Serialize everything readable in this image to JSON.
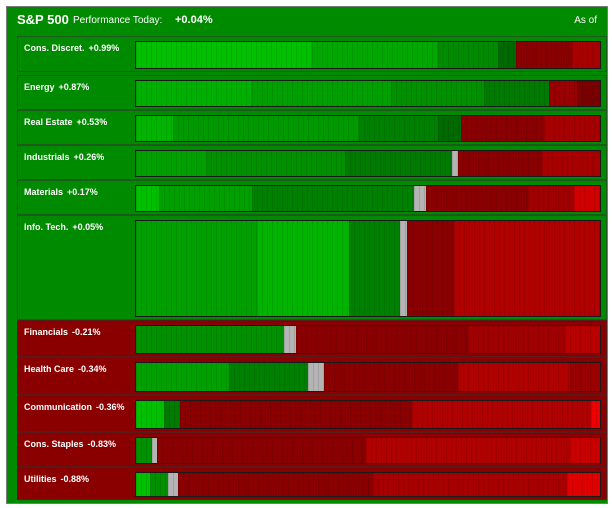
{
  "header": {
    "title": "S&P 500",
    "perf_label": "Performance Today:",
    "perf_value": "+0.04%",
    "as_of": "As of"
  },
  "colors": {
    "up": "#008a00",
    "down": "#8a0000",
    "unchanged": "#b4b4b4"
  },
  "sectors": [
    {
      "name": "Cons. Discret.",
      "change": "+0.99%",
      "direction": "up",
      "segments": [
        {
          "w": 38,
          "c": "#00c000"
        },
        {
          "w": 27,
          "c": "#00a800"
        },
        {
          "w": 13,
          "c": "#008a00"
        },
        {
          "w": 4,
          "c": "#006a00"
        },
        {
          "w": 12,
          "c": "#8a0000"
        },
        {
          "w": 6,
          "c": "#a80000"
        }
      ]
    },
    {
      "name": "Energy",
      "change": "+0.87%",
      "direction": "up",
      "segments": [
        {
          "w": 25,
          "c": "#00b000"
        },
        {
          "w": 30,
          "c": "#00a000"
        },
        {
          "w": 20,
          "c": "#009000"
        },
        {
          "w": 14,
          "c": "#007a00"
        },
        {
          "w": 6,
          "c": "#9a0000"
        },
        {
          "w": 5,
          "c": "#7a0000"
        }
      ]
    },
    {
      "name": "Real Estate",
      "change": "+0.53%",
      "direction": "up",
      "segments": [
        {
          "w": 8,
          "c": "#00b400"
        },
        {
          "w": 40,
          "c": "#009a00"
        },
        {
          "w": 17,
          "c": "#008000"
        },
        {
          "w": 5,
          "c": "#006a00"
        },
        {
          "w": 18,
          "c": "#8a0000"
        },
        {
          "w": 12,
          "c": "#a60000"
        }
      ]
    },
    {
      "name": "Industrials",
      "change": "+0.26%",
      "direction": "up",
      "segments": [
        {
          "w": 15,
          "c": "#00a000"
        },
        {
          "w": 30,
          "c": "#009000"
        },
        {
          "w": 23,
          "c": "#007a00"
        },
        {
          "w": 1.5,
          "c": "#b4b4b4"
        },
        {
          "w": 18,
          "c": "#8a0000"
        },
        {
          "w": 12.5,
          "c": "#a80000"
        }
      ]
    },
    {
      "name": "Materials",
      "change": "+0.17%",
      "direction": "up",
      "segments": [
        {
          "w": 5,
          "c": "#00c000"
        },
        {
          "w": 20,
          "c": "#00a000"
        },
        {
          "w": 35,
          "c": "#008000"
        },
        {
          "w": 2.5,
          "c": "#b4b4b4"
        },
        {
          "w": 22,
          "c": "#8a0000"
        },
        {
          "w": 10,
          "c": "#a00000"
        },
        {
          "w": 5.5,
          "c": "#d00000"
        }
      ]
    },
    {
      "name": "Info. Tech.",
      "change": "+0.05%",
      "direction": "up",
      "segments": [
        {
          "w": 26,
          "c": "#00a000"
        },
        {
          "w": 20,
          "c": "#00b400"
        },
        {
          "w": 11,
          "c": "#008000"
        },
        {
          "w": 1.5,
          "c": "#b4b4b4"
        },
        {
          "w": 10,
          "c": "#8a0000"
        },
        {
          "w": 31.5,
          "c": "#b00000"
        }
      ]
    },
    {
      "name": "Financials",
      "change": "-0.21%",
      "direction": "down",
      "segments": [
        {
          "w": 32,
          "c": "#009000"
        },
        {
          "w": 2.5,
          "c": "#b4b4b4"
        },
        {
          "w": 37,
          "c": "#8a0000"
        },
        {
          "w": 21,
          "c": "#a00000"
        },
        {
          "w": 7.5,
          "c": "#b80000"
        }
      ]
    },
    {
      "name": "Health Care",
      "change": "-0.34%",
      "direction": "down",
      "segments": [
        {
          "w": 20,
          "c": "#00a000"
        },
        {
          "w": 17,
          "c": "#008000"
        },
        {
          "w": 3.5,
          "c": "#b4b4b4"
        },
        {
          "w": 29,
          "c": "#8a0000"
        },
        {
          "w": 24,
          "c": "#b00000"
        },
        {
          "w": 6.5,
          "c": "#9a0000"
        }
      ]
    },
    {
      "name": "Communication",
      "change": "-0.36%",
      "direction": "down",
      "segments": [
        {
          "w": 6,
          "c": "#00c000"
        },
        {
          "w": 3.5,
          "c": "#007a00"
        },
        {
          "w": 50,
          "c": "#8a0000"
        },
        {
          "w": 38.5,
          "c": "#b00000"
        },
        {
          "w": 2,
          "c": "#ee0000"
        }
      ]
    },
    {
      "name": "Cons. Staples",
      "change": "-0.83%",
      "direction": "down",
      "segments": [
        {
          "w": 3.5,
          "c": "#009000"
        },
        {
          "w": 1,
          "c": "#b4b4b4"
        },
        {
          "w": 45,
          "c": "#8a0000"
        },
        {
          "w": 44,
          "c": "#b00000"
        },
        {
          "w": 6.5,
          "c": "#c80000"
        }
      ]
    },
    {
      "name": "Utilities",
      "change": "-0.88%",
      "direction": "down",
      "segments": [
        {
          "w": 3,
          "c": "#00c000"
        },
        {
          "w": 4,
          "c": "#009000"
        },
        {
          "w": 2,
          "c": "#b4b4b4"
        },
        {
          "w": 42,
          "c": "#8a0000"
        },
        {
          "w": 42,
          "c": "#a80000"
        },
        {
          "w": 7,
          "c": "#e00000"
        }
      ]
    }
  ]
}
